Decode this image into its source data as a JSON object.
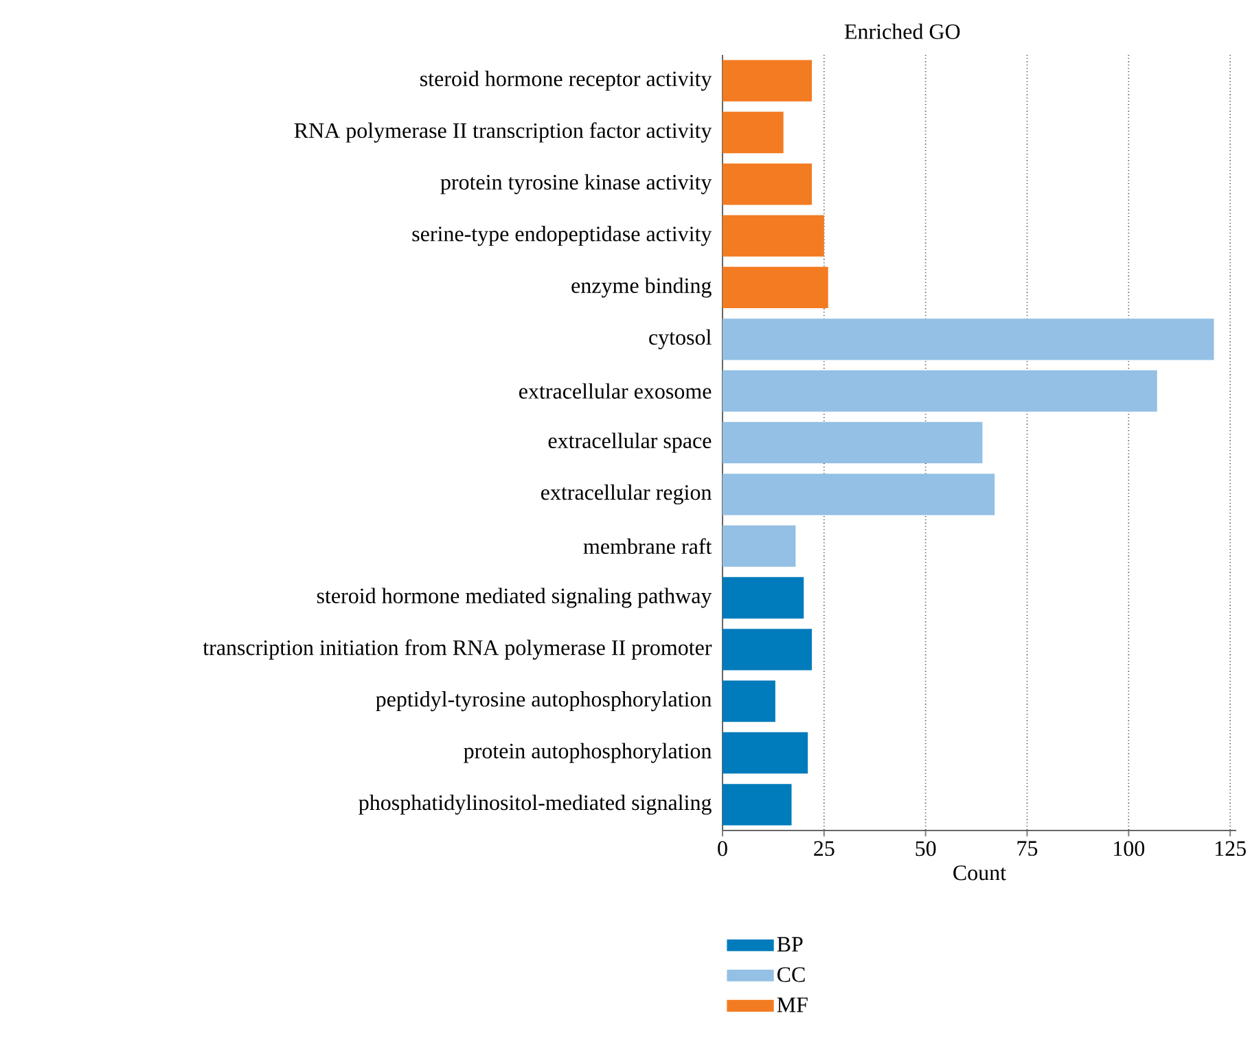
{
  "chart_data": {
    "type": "bar",
    "orientation": "horizontal",
    "title": "Enriched GO",
    "xlabel": "Count",
    "categories": [
      "steroid hormone receptor activity",
      "RNA polymerase II transcription factor activity",
      "protein tyrosine kinase activity",
      "serine-type endopeptidase activity",
      "enzyme binding",
      "cytosol",
      "extracellular exosome",
      "extracellular space",
      "extracellular region",
      "membrane raft",
      "steroid hormone mediated signaling pathway",
      "transcription initiation from RNA polymerase II promoter",
      "peptidyl-tyrosine autophosphorylation",
      "protein autophosphorylation",
      "phosphatidylinositol-mediated signaling"
    ],
    "series": [
      {
        "name": "BP",
        "color": "#007bbb",
        "values": [
          null,
          null,
          null,
          null,
          null,
          null,
          null,
          null,
          null,
          null,
          20,
          22,
          13,
          21,
          17
        ]
      },
      {
        "name": "CC",
        "color": "#93c0e4",
        "values": [
          null,
          null,
          null,
          null,
          null,
          121,
          107,
          64,
          67,
          18,
          null,
          null,
          null,
          null,
          null
        ]
      },
      {
        "name": "MF",
        "color": "#f37b21",
        "values": [
          22,
          15,
          22,
          25,
          26,
          null,
          null,
          null,
          null,
          null,
          null,
          null,
          null,
          null,
          null
        ]
      }
    ],
    "xlim": [
      0,
      126.5
    ],
    "xticks": [
      0,
      25,
      50,
      75,
      100,
      125
    ],
    "grid": "x",
    "legend": "bottom"
  }
}
